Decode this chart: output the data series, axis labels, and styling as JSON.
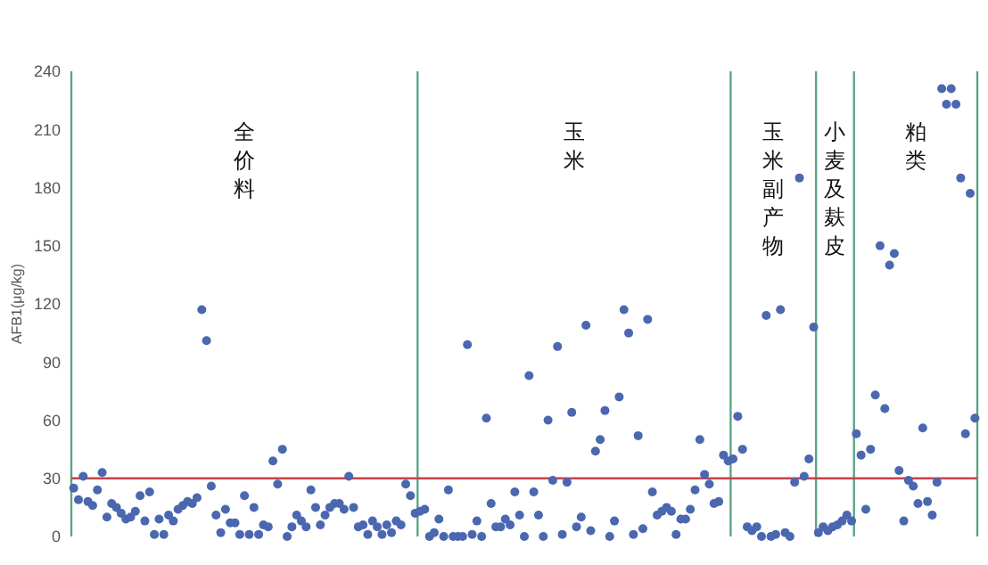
{
  "chart_data": {
    "type": "scatter",
    "ylabel": "AFB1(μg/kg)",
    "categories": [
      null,
      null,
      null,
      null,
      null,
      null,
      null,
      null,
      null,
      null,
      null,
      null,
      null,
      null,
      null,
      null,
      null,
      null,
      null,
      null,
      null,
      null,
      null,
      null,
      null,
      null,
      null,
      null,
      null,
      null,
      null,
      null,
      null,
      null,
      null,
      null,
      null,
      null,
      null,
      null,
      null,
      null,
      null,
      null,
      null,
      null,
      null,
      null,
      null,
      null,
      null,
      null,
      null,
      null,
      null,
      null,
      null,
      null,
      null,
      null,
      null,
      null,
      null,
      null,
      null,
      null,
      null,
      null,
      null,
      null,
      null,
      null,
      null,
      null,
      null,
      null,
      null,
      null,
      null,
      null,
      null,
      null,
      null,
      null,
      null,
      null,
      null,
      null,
      null,
      null,
      null,
      null,
      null,
      null,
      null,
      null,
      null,
      null,
      null,
      null,
      null,
      null,
      null,
      null,
      null,
      null,
      null,
      null,
      null,
      null,
      null,
      null,
      null,
      null,
      null,
      null,
      null,
      null,
      null,
      null,
      null,
      null,
      null,
      null,
      null,
      null,
      null,
      null,
      null,
      null,
      null,
      null,
      null,
      null,
      null,
      null,
      null,
      null,
      null,
      null,
      null,
      null,
      null,
      null,
      null,
      null,
      null,
      null,
      null,
      null,
      null,
      null,
      null,
      null,
      null,
      null,
      null,
      null,
      null,
      null,
      null,
      null,
      null,
      null,
      null,
      null,
      null,
      null,
      null,
      null,
      null,
      null,
      null,
      null,
      null,
      null,
      null,
      null,
      null,
      null,
      null,
      null,
      null,
      null,
      null,
      null,
      null,
      null,
      null,
      null,
      null
    ],
    "series": [
      {
        "color": "#4a67b0",
        "values": [
          25,
          19,
          31,
          18,
          16,
          24,
          33,
          10,
          17,
          15,
          12,
          9,
          10,
          13,
          21,
          8,
          23,
          1,
          9,
          1,
          11,
          8,
          14,
          16,
          18,
          17,
          20,
          117,
          101,
          26,
          11,
          2,
          14,
          7,
          7,
          1,
          21,
          1,
          15,
          1,
          6,
          5,
          39,
          27,
          45,
          0,
          5,
          11,
          8,
          5,
          24,
          15,
          6,
          11,
          15,
          17,
          17,
          14,
          31,
          15,
          5,
          6,
          1,
          8,
          5,
          1,
          6,
          2,
          8,
          6,
          27,
          21,
          12,
          null,
          null,
          null,
          null,
          null,
          null,
          null,
          null,
          null,
          null,
          null,
          null,
          null,
          null,
          null,
          null,
          null,
          null,
          null,
          null,
          null,
          null,
          null,
          null,
          null,
          null,
          null,
          null,
          null,
          null,
          null,
          null,
          null,
          null,
          null,
          null,
          null,
          null,
          null,
          null,
          null,
          null,
          null,
          null,
          null,
          null,
          null,
          null,
          null,
          null,
          null,
          null,
          null,
          null,
          null,
          null,
          null,
          null,
          null,
          null,
          null,
          null,
          null,
          null,
          null,
          null,
          null,
          null,
          null,
          null,
          null,
          null,
          null,
          null,
          null,
          null,
          null,
          null,
          null,
          null,
          null,
          null,
          null,
          null,
          null,
          null,
          null,
          null,
          null,
          null,
          null,
          null,
          null,
          null,
          null,
          null,
          null,
          null,
          null,
          null,
          null,
          null,
          null,
          null,
          null,
          null,
          null,
          null,
          null,
          null,
          null,
          null,
          null,
          null,
          null,
          null,
          null,
          null
        ]
      },
      {
        "color": "#4a67b0",
        "values": [
          null,
          null,
          null,
          null,
          null,
          null,
          null,
          null,
          null,
          null,
          null,
          null,
          null,
          null,
          null,
          null,
          null,
          null,
          null,
          null,
          null,
          null,
          null,
          null,
          null,
          null,
          null,
          null,
          null,
          null,
          null,
          null,
          null,
          null,
          null,
          null,
          null,
          null,
          null,
          null,
          null,
          null,
          null,
          null,
          null,
          null,
          null,
          null,
          null,
          null,
          null,
          null,
          null,
          null,
          null,
          null,
          null,
          null,
          null,
          null,
          null,
          null,
          null,
          null,
          null,
          null,
          null,
          null,
          null,
          null,
          null,
          null,
          null,
          13,
          14,
          0,
          2,
          9,
          0,
          24,
          0,
          0,
          0,
          99,
          1,
          8,
          0,
          61,
          17,
          5,
          5,
          9,
          6,
          23,
          11,
          0,
          83,
          23,
          11,
          0,
          60,
          29,
          98,
          1,
          28,
          64,
          5,
          10,
          109,
          3,
          44,
          50,
          65,
          0,
          8,
          72,
          117,
          105,
          1,
          52,
          4,
          112,
          23,
          11,
          13,
          15,
          13,
          1,
          9,
          9,
          14,
          24,
          50,
          32,
          27,
          17,
          18,
          42,
          39,
          null,
          null,
          null,
          null,
          null,
          null,
          null,
          null,
          null,
          null,
          null,
          null,
          null,
          null,
          null,
          null,
          null,
          null,
          null,
          null,
          null,
          null,
          null,
          null,
          null,
          null,
          null,
          null,
          null,
          null,
          null,
          null,
          null,
          null,
          null,
          null,
          null,
          null,
          null,
          null,
          null,
          null,
          null,
          null,
          null,
          null,
          null,
          null,
          null,
          null,
          null,
          null
        ]
      },
      {
        "color": "#4a67b0",
        "values": [
          null,
          null,
          null,
          null,
          null,
          null,
          null,
          null,
          null,
          null,
          null,
          null,
          null,
          null,
          null,
          null,
          null,
          null,
          null,
          null,
          null,
          null,
          null,
          null,
          null,
          null,
          null,
          null,
          null,
          null,
          null,
          null,
          null,
          null,
          null,
          null,
          null,
          null,
          null,
          null,
          null,
          null,
          null,
          null,
          null,
          null,
          null,
          null,
          null,
          null,
          null,
          null,
          null,
          null,
          null,
          null,
          null,
          null,
          null,
          null,
          null,
          null,
          null,
          null,
          null,
          null,
          null,
          null,
          null,
          null,
          null,
          null,
          null,
          null,
          null,
          null,
          null,
          null,
          null,
          null,
          null,
          null,
          null,
          null,
          null,
          null,
          null,
          null,
          null,
          null,
          null,
          null,
          null,
          null,
          null,
          null,
          null,
          null,
          null,
          null,
          null,
          null,
          null,
          null,
          null,
          null,
          null,
          null,
          null,
          null,
          null,
          null,
          null,
          null,
          null,
          null,
          null,
          null,
          null,
          null,
          null,
          null,
          null,
          null,
          null,
          null,
          null,
          null,
          null,
          null,
          null,
          null,
          null,
          null,
          null,
          null,
          null,
          null,
          null,
          40,
          62,
          45,
          5,
          3,
          5,
          0,
          114,
          0,
          1,
          117,
          2,
          0,
          28,
          185,
          31,
          40,
          108,
          null,
          null,
          null,
          null,
          null,
          null,
          null,
          null,
          null,
          null,
          null,
          null,
          null,
          null,
          null,
          null,
          null,
          null,
          null,
          null,
          null,
          null,
          null,
          null,
          null,
          null,
          null,
          null,
          null,
          null,
          null,
          null,
          null,
          null
        ]
      },
      {
        "color": "#4a67b0",
        "values": [
          null,
          null,
          null,
          null,
          null,
          null,
          null,
          null,
          null,
          null,
          null,
          null,
          null,
          null,
          null,
          null,
          null,
          null,
          null,
          null,
          null,
          null,
          null,
          null,
          null,
          null,
          null,
          null,
          null,
          null,
          null,
          null,
          null,
          null,
          null,
          null,
          null,
          null,
          null,
          null,
          null,
          null,
          null,
          null,
          null,
          null,
          null,
          null,
          null,
          null,
          null,
          null,
          null,
          null,
          null,
          null,
          null,
          null,
          null,
          null,
          null,
          null,
          null,
          null,
          null,
          null,
          null,
          null,
          null,
          null,
          null,
          null,
          null,
          null,
          null,
          null,
          null,
          null,
          null,
          null,
          null,
          null,
          null,
          null,
          null,
          null,
          null,
          null,
          null,
          null,
          null,
          null,
          null,
          null,
          null,
          null,
          null,
          null,
          null,
          null,
          null,
          null,
          null,
          null,
          null,
          null,
          null,
          null,
          null,
          null,
          null,
          null,
          null,
          null,
          null,
          null,
          null,
          null,
          null,
          null,
          null,
          null,
          null,
          null,
          null,
          null,
          null,
          null,
          null,
          null,
          null,
          null,
          null,
          null,
          null,
          null,
          null,
          null,
          null,
          null,
          null,
          null,
          null,
          null,
          null,
          null,
          null,
          null,
          null,
          null,
          null,
          null,
          null,
          null,
          null,
          null,
          null,
          2,
          5,
          3,
          5,
          6,
          8,
          11,
          8,
          null,
          null,
          null,
          null,
          null,
          null,
          null,
          null,
          null,
          null,
          null,
          null,
          null,
          null,
          null,
          null,
          null,
          null,
          null,
          null,
          null,
          null,
          null,
          null,
          null,
          null
        ]
      },
      {
        "color": "#4a67b0",
        "values": [
          null,
          null,
          null,
          null,
          null,
          null,
          null,
          null,
          null,
          null,
          null,
          null,
          null,
          null,
          null,
          null,
          null,
          null,
          null,
          null,
          null,
          null,
          null,
          null,
          null,
          null,
          null,
          null,
          null,
          null,
          null,
          null,
          null,
          null,
          null,
          null,
          null,
          null,
          null,
          null,
          null,
          null,
          null,
          null,
          null,
          null,
          null,
          null,
          null,
          null,
          null,
          null,
          null,
          null,
          null,
          null,
          null,
          null,
          null,
          null,
          null,
          null,
          null,
          null,
          null,
          null,
          null,
          null,
          null,
          null,
          null,
          null,
          null,
          null,
          null,
          null,
          null,
          null,
          null,
          null,
          null,
          null,
          null,
          null,
          null,
          null,
          null,
          null,
          null,
          null,
          null,
          null,
          null,
          null,
          null,
          null,
          null,
          null,
          null,
          null,
          null,
          null,
          null,
          null,
          null,
          null,
          null,
          null,
          null,
          null,
          null,
          null,
          null,
          null,
          null,
          null,
          null,
          null,
          null,
          null,
          null,
          null,
          null,
          null,
          null,
          null,
          null,
          null,
          null,
          null,
          null,
          null,
          null,
          null,
          null,
          null,
          null,
          null,
          null,
          null,
          null,
          null,
          null,
          null,
          null,
          null,
          null,
          null,
          null,
          null,
          null,
          null,
          null,
          null,
          null,
          null,
          null,
          null,
          null,
          null,
          null,
          null,
          null,
          null,
          null,
          53,
          42,
          14,
          45,
          73,
          150,
          66,
          140,
          146,
          34,
          8,
          29,
          26,
          17,
          56,
          18,
          11,
          28,
          231,
          223,
          231,
          223,
          185,
          53,
          177,
          61
        ]
      }
    ],
    "ylim": [
      0,
      240
    ],
    "yticks": [
      0,
      30,
      60,
      90,
      120,
      150,
      180,
      210,
      240
    ],
    "marker": "circle",
    "ref_lines": [
      {
        "axis": "y",
        "value": 30,
        "color": "#c9414a"
      }
    ],
    "annotations": [
      "全价料",
      "玉米",
      "玉米副产物",
      "小麦及麸皮",
      "粕类"
    ]
  }
}
